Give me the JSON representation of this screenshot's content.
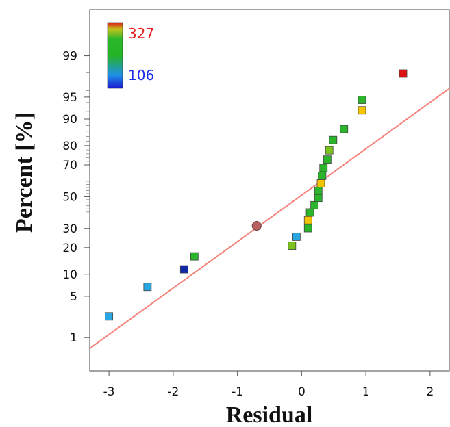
{
  "chart_data": {
    "type": "scatter",
    "title": "",
    "xlabel": "Residual",
    "ylabel": "Percent [%]",
    "xlim": [
      -3.3,
      2.3
    ],
    "ylim_percent": [
      0.2,
      99.9
    ],
    "y_scale": "normal-probability",
    "x_ticks": [
      -3,
      -2,
      -1,
      0,
      1,
      2
    ],
    "y_ticks": [
      1,
      5,
      10,
      20,
      30,
      50,
      70,
      80,
      90,
      95,
      99
    ],
    "grid": false,
    "color_scale": {
      "min": 106,
      "max": 327,
      "min_label": "106",
      "max_label": "327",
      "min_color": "#1f1fe0",
      "max_color": "#ee1c1c",
      "placement": "top-left"
    },
    "reference_line": {
      "color": "#f4827a",
      "points": [
        [
          -3.3,
          0.61
        ],
        [
          2.3,
          96.3
        ]
      ]
    },
    "points": [
      {
        "x": -3.0,
        "y": 2.4,
        "color": "#29a6e0",
        "shape": "square"
      },
      {
        "x": -2.4,
        "y": 6.8,
        "color": "#29a6e0",
        "shape": "square"
      },
      {
        "x": -1.83,
        "y": 11.5,
        "color": "#1226a8",
        "shape": "square"
      },
      {
        "x": -1.67,
        "y": 16.2,
        "color": "#2bb52b",
        "shape": "square"
      },
      {
        "x": -0.7,
        "y": 31.5,
        "color": "#b86060",
        "shape": "circle"
      },
      {
        "x": -0.15,
        "y": 20.9,
        "color": "#7cc41d",
        "shape": "square"
      },
      {
        "x": -0.08,
        "y": 25.4,
        "color": "#29a6e0",
        "shape": "square"
      },
      {
        "x": 0.1,
        "y": 30.1,
        "color": "#2bb52b",
        "shape": "square"
      },
      {
        "x": 0.1,
        "y": 34.9,
        "color": "#f5c400",
        "shape": "square"
      },
      {
        "x": 0.13,
        "y": 39.7,
        "color": "#2bb52b",
        "shape": "square"
      },
      {
        "x": 0.2,
        "y": 44.4,
        "color": "#2bb52b",
        "shape": "square"
      },
      {
        "x": 0.26,
        "y": 49.2,
        "color": "#2bb52b",
        "shape": "square"
      },
      {
        "x": 0.26,
        "y": 53.9,
        "color": "#2bb52b",
        "shape": "square"
      },
      {
        "x": 0.3,
        "y": 58.7,
        "color": "#f5c400",
        "shape": "square"
      },
      {
        "x": 0.32,
        "y": 63.5,
        "color": "#2bb52b",
        "shape": "square"
      },
      {
        "x": 0.34,
        "y": 68.2,
        "color": "#2bb52b",
        "shape": "square"
      },
      {
        "x": 0.4,
        "y": 73.0,
        "color": "#2bb52b",
        "shape": "square"
      },
      {
        "x": 0.43,
        "y": 77.8,
        "color": "#7cc41d",
        "shape": "square"
      },
      {
        "x": 0.49,
        "y": 82.5,
        "color": "#2bb52b",
        "shape": "square"
      },
      {
        "x": 0.66,
        "y": 86.8,
        "color": "#2bb52b",
        "shape": "square"
      },
      {
        "x": 0.94,
        "y": 92.3,
        "color": "#f5c400",
        "shape": "square"
      },
      {
        "x": 0.94,
        "y": 94.5,
        "color": "#2bb52b",
        "shape": "square"
      },
      {
        "x": 1.58,
        "y": 97.9,
        "color": "#dd1111",
        "shape": "square"
      }
    ]
  }
}
